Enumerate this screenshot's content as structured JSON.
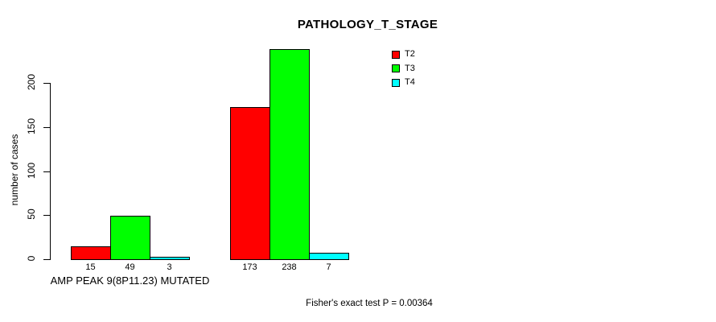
{
  "chart_data": {
    "type": "bar",
    "title": "PATHOLOGY_T_STAGE",
    "ylabel": "number of cases",
    "xlabel": "",
    "ylim": [
      0,
      240
    ],
    "yticks": [
      0,
      50,
      100,
      150,
      200
    ],
    "grid": false,
    "legend_position": "top-right",
    "categories": [
      "AMP PEAK 9(8P11.23) MUTATED",
      ""
    ],
    "series": [
      {
        "name": "T2",
        "color": "#ff0000",
        "values": [
          15,
          173
        ]
      },
      {
        "name": "T3",
        "color": "#00ff00",
        "values": [
          49,
          238
        ]
      },
      {
        "name": "T4",
        "color": "#00ffff",
        "values": [
          3,
          7
        ]
      }
    ],
    "annotation": "Fisher's exact test P = 0.00364",
    "colors": {
      "background": "#ffffff",
      "axis": "#000000",
      "bar_border": "#000000",
      "text": "#000000"
    }
  }
}
